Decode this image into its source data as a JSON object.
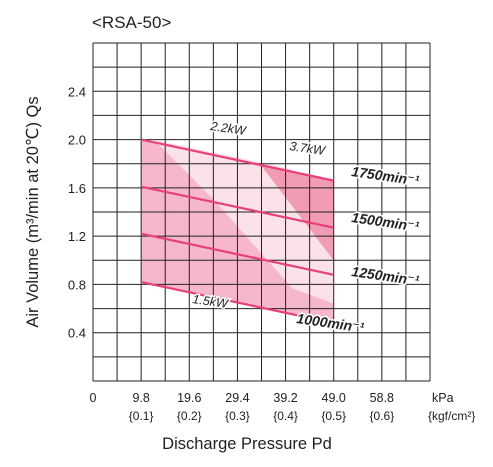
{
  "chart_data": {
    "type": "line",
    "title": "<RSA-50>",
    "xlabel": "Discharge Pressure Pd",
    "ylabel": "Air Volume (m³/min at 20℃) Qs",
    "x_unit": "kPa",
    "x_unit_alt": "{kgf/cm²}",
    "x_ticks": [
      0,
      9.8,
      19.6,
      29.4,
      39.2,
      49.0,
      58.8
    ],
    "x_tick_labels": [
      "0",
      "9.8",
      "19.6",
      "29.4",
      "39.2",
      "49.0",
      "58.8"
    ],
    "x_tick_labels_alt": [
      "{0.1}",
      "{0.2}",
      "{0.3}",
      "{0.4}",
      "{0.5}",
      "{0.6}"
    ],
    "y_ticks": [
      0.4,
      0.8,
      1.2,
      1.6,
      2.0,
      2.4
    ],
    "y_tick_labels": [
      "0.4",
      "0.8",
      "1.2",
      "1.6",
      "2.0",
      "2.4"
    ],
    "xlim": [
      0,
      68.6
    ],
    "ylim": [
      0,
      2.8
    ],
    "grid": true,
    "series": [
      {
        "name": "1750min⁻¹",
        "x": [
          9.8,
          49.0
        ],
        "y": [
          2.0,
          1.66
        ]
      },
      {
        "name": "1500min⁻¹",
        "x": [
          9.8,
          49.0
        ],
        "y": [
          1.61,
          1.27
        ]
      },
      {
        "name": "1250min⁻¹",
        "x": [
          9.8,
          49.0
        ],
        "y": [
          1.22,
          0.88
        ]
      },
      {
        "name": "1000min⁻¹",
        "x": [
          9.8,
          49.0
        ],
        "y": [
          0.82,
          0.48
        ]
      }
    ],
    "power_regions": [
      {
        "label": "1.5kW"
      },
      {
        "label": "2.2kW"
      },
      {
        "label": "3.7kW"
      }
    ],
    "colors": {
      "line": "#e8407a",
      "region_1_5kw": "#f5b7c9",
      "region_2_2kw": "#fbe1e8",
      "region_3_7kw": "#f29bb4",
      "grid": "#222222"
    }
  }
}
